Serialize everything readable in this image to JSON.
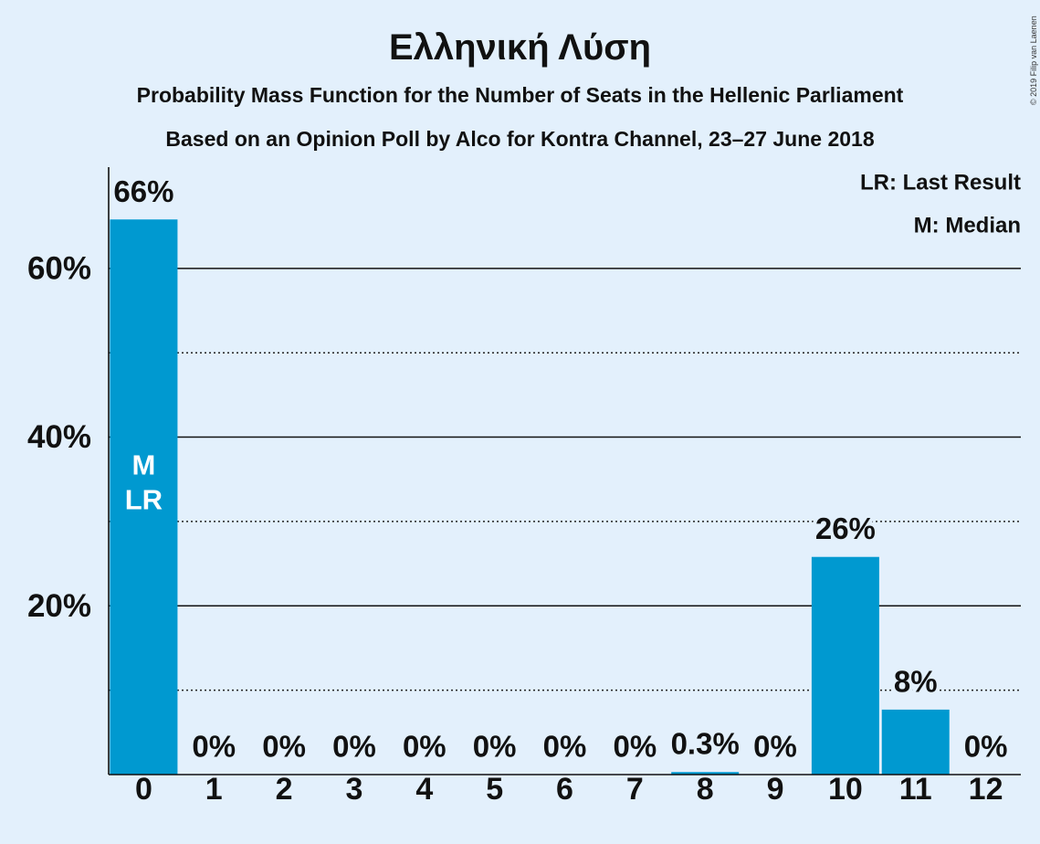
{
  "chart_data": {
    "type": "bar",
    "title": "Ελληνική Λύση",
    "subtitles": [
      "Probability Mass Function for the Number of Seats in the Hellenic Parliament",
      "Based on an Opinion Poll by Alco for Kontra Channel, 23–27 June 2018"
    ],
    "xlabel": "",
    "ylabel": "",
    "categories": [
      "0",
      "1",
      "2",
      "3",
      "4",
      "5",
      "6",
      "7",
      "8",
      "9",
      "10",
      "11",
      "12"
    ],
    "values": [
      65.8,
      0,
      0,
      0,
      0,
      0,
      0,
      0,
      0.3,
      0,
      25.8,
      7.7,
      0
    ],
    "value_labels": [
      "66%",
      "0%",
      "0%",
      "0%",
      "0%",
      "0%",
      "0%",
      "0%",
      "0.3%",
      "0%",
      "26%",
      "8%",
      "0%"
    ],
    "ylim": [
      0,
      72
    ],
    "major_gridlines": [
      20,
      40,
      60
    ],
    "ytick_labels": [
      "20%",
      "40%",
      "60%"
    ],
    "minor_gridlines": [
      10,
      30,
      50
    ],
    "grid": true,
    "bar_markers": [
      {
        "category": 0,
        "lines": [
          "M",
          "LR"
        ]
      }
    ],
    "legend": [
      "LR: Last Result",
      "M: Median"
    ],
    "legend_position": "top-right"
  },
  "copyright": "© 2019 Filip van Laenen",
  "colors": {
    "background": "#E3F0FC",
    "bar": "#0099D0",
    "text": "#111111",
    "marker_text": "#FFFFFF"
  }
}
